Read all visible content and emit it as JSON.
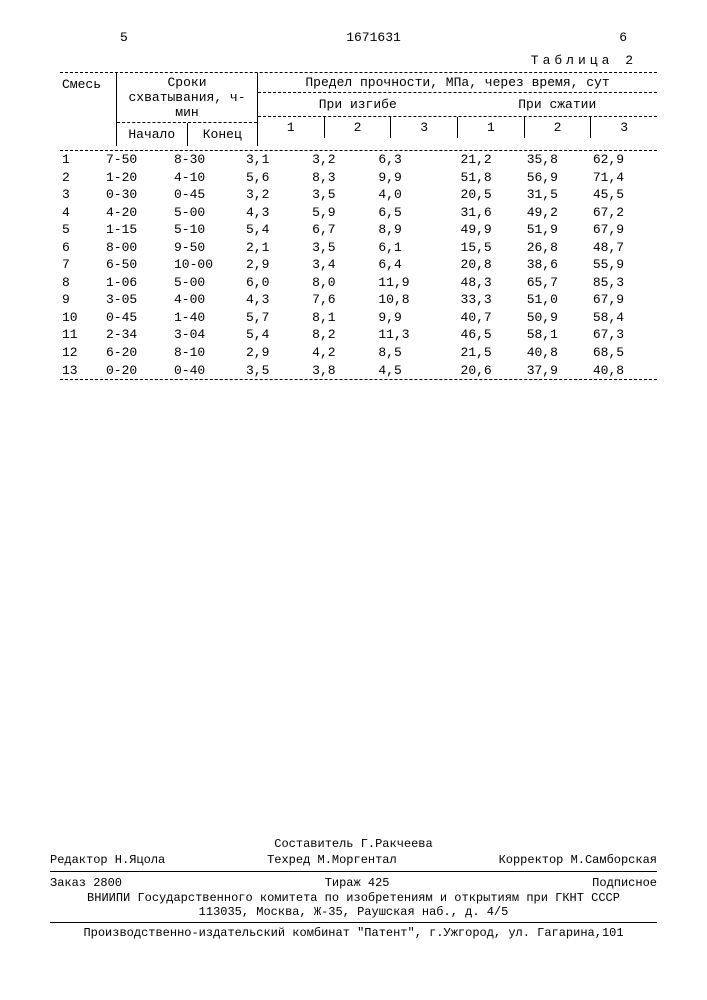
{
  "header": {
    "left_marker": "5",
    "doc_number": "1671631",
    "page_col": "6",
    "table_caption": "Таблица 2"
  },
  "table": {
    "columns": {
      "mix": "Смесь",
      "setting": "Сроки схватывания, ч-мин",
      "setting_sub": {
        "start": "Начало",
        "end": "Конец"
      },
      "strength": "Предел прочности, МПа, через время, сут",
      "bend": "При изгибе",
      "compress": "При сжатии",
      "nums": [
        "1",
        "2",
        "3",
        "1",
        "2",
        "3"
      ]
    },
    "rows": [
      {
        "mix": "1",
        "start": "7-50",
        "end": "8-30",
        "b1": "3,1",
        "b2": "3,2",
        "b3": "6,3",
        "c1": "21,2",
        "c2": "35,8",
        "c3": "62,9"
      },
      {
        "mix": "2",
        "start": "1-20",
        "end": "4-10",
        "b1": "5,6",
        "b2": "8,3",
        "b3": "9,9",
        "c1": "51,8",
        "c2": "56,9",
        "c3": "71,4"
      },
      {
        "mix": "3",
        "start": "0-30",
        "end": "0-45",
        "b1": "3,2",
        "b2": "3,5",
        "b3": "4,0",
        "c1": "20,5",
        "c2": "31,5",
        "c3": "45,5"
      },
      {
        "mix": "4",
        "start": "4-20",
        "end": "5-00",
        "b1": "4,3",
        "b2": "5,9",
        "b3": "6,5",
        "c1": "31,6",
        "c2": "49,2",
        "c3": "67,2"
      },
      {
        "mix": "5",
        "start": "1-15",
        "end": "5-10",
        "b1": "5,4",
        "b2": "6,7",
        "b3": "8,9",
        "c1": "49,9",
        "c2": "51,9",
        "c3": "67,9"
      },
      {
        "mix": "6",
        "start": "8-00",
        "end": "9-50",
        "b1": "2,1",
        "b2": "3,5",
        "b3": "6,1",
        "c1": "15,5",
        "c2": "26,8",
        "c3": "48,7"
      },
      {
        "mix": "7",
        "start": "6-50",
        "end": "10-00",
        "b1": "2,9",
        "b2": "3,4",
        "b3": "6,4",
        "c1": "20,8",
        "c2": "38,6",
        "c3": "55,9"
      },
      {
        "mix": "8",
        "start": "1-06",
        "end": "5-00",
        "b1": "6,0",
        "b2": "8,0",
        "b3": "11,9",
        "c1": "48,3",
        "c2": "65,7",
        "c3": "85,3"
      },
      {
        "mix": "9",
        "start": "3-05",
        "end": "4-00",
        "b1": "4,3",
        "b2": "7,6",
        "b3": "10,8",
        "c1": "33,3",
        "c2": "51,0",
        "c3": "67,9"
      },
      {
        "mix": "10",
        "start": "0-45",
        "end": "1-40",
        "b1": "5,7",
        "b2": "8,1",
        "b3": "9,9",
        "c1": "40,7",
        "c2": "50,9",
        "c3": "58,4"
      },
      {
        "mix": "11",
        "start": "2-34",
        "end": "3-04",
        "b1": "5,4",
        "b2": "8,2",
        "b3": "11,3",
        "c1": "46,5",
        "c2": "58,1",
        "c3": "67,3"
      },
      {
        "mix": "12",
        "start": "6-20",
        "end": "8-10",
        "b1": "2,9",
        "b2": "4,2",
        "b3": "8,5",
        "c1": "21,5",
        "c2": "40,8",
        "c3": "68,5"
      },
      {
        "mix": "13",
        "start": "0-20",
        "end": "0-40",
        "b1": "3,5",
        "b2": "3,8",
        "b3": "4,5",
        "c1": "20,6",
        "c2": "37,9",
        "c3": "40,8"
      }
    ]
  },
  "footer": {
    "editor_label": "Редактор Н.Яцола",
    "compiler": "Составитель Г.Ракчеева",
    "techred": "Техред М.Моргентал",
    "corrector": "Корректор М.Самборская",
    "order": "Заказ 2800",
    "tirazh": "Тираж 425",
    "podpisnoe": "Подписное",
    "org1": "ВНИИПИ Государственного комитета по изобретениям и открытиям при ГКНТ СССР",
    "org2": "113035, Москва, Ж-35, Раушская наб., д. 4/5",
    "press": "Производственно-издательский комбинат \"Патент\", г.Ужгород, ул. Гагарина,101"
  }
}
